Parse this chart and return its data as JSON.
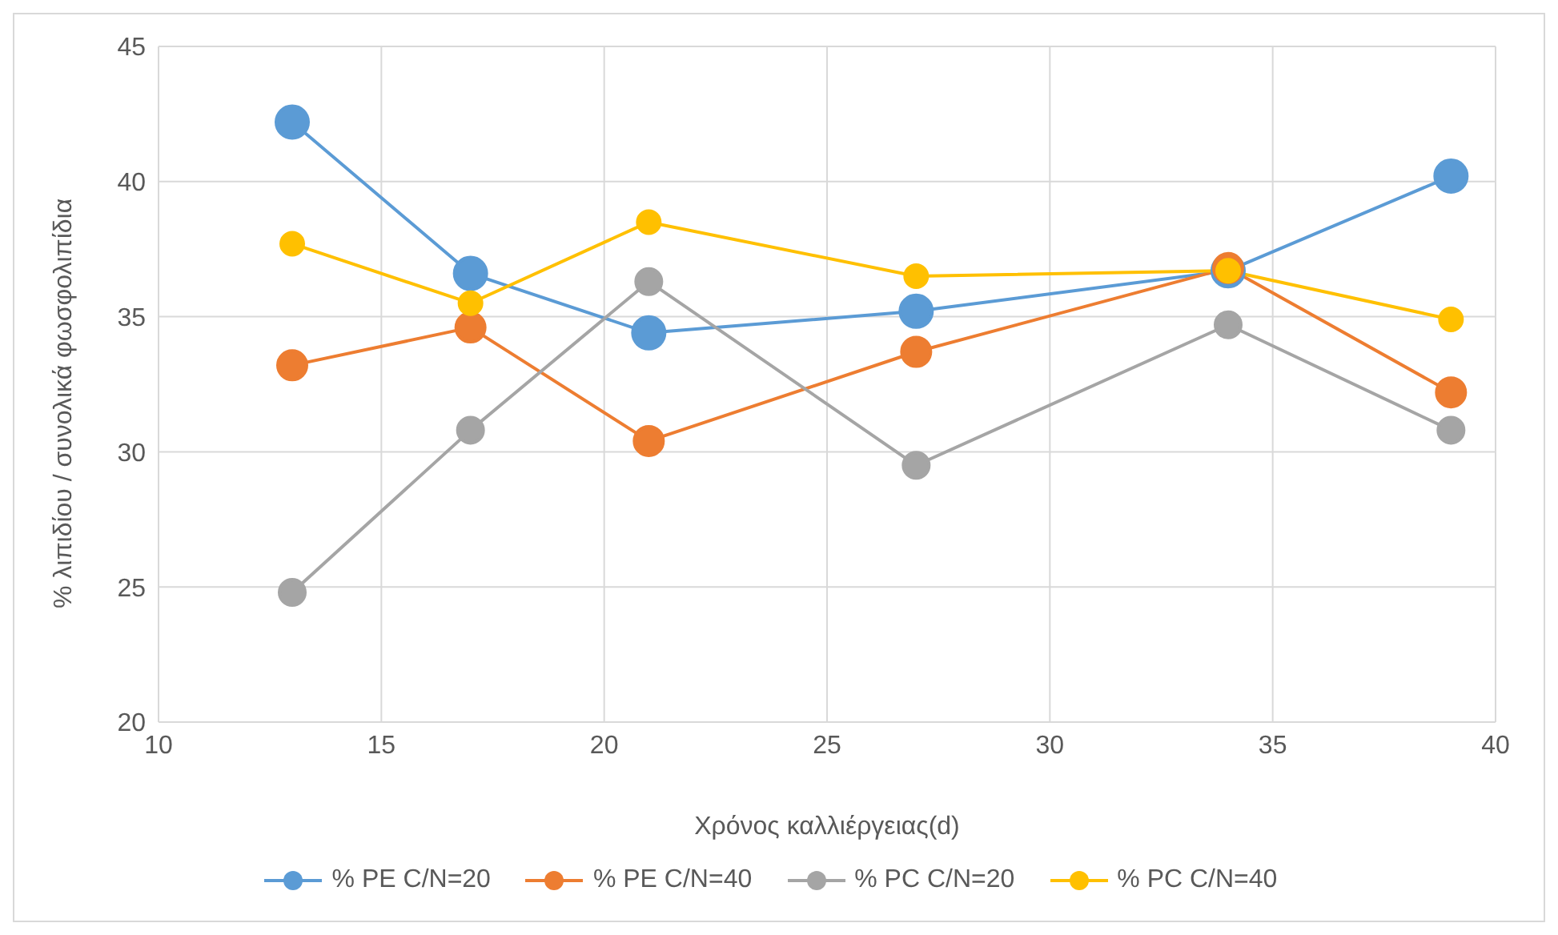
{
  "chart_data": {
    "type": "line",
    "xlabel": "Χρόνος καλλιέργειας(d)",
    "ylabel": "% λιπιδίου / συνολικά φωσφολιπίδια",
    "x": [
      13,
      17,
      21,
      27,
      34,
      39
    ],
    "series": [
      {
        "name": "% PE C/N=20",
        "color": "#5b9bd5",
        "values": [
          42.2,
          36.6,
          34.4,
          35.2,
          36.7,
          40.2
        ]
      },
      {
        "name": "% PE C/N=40",
        "color": "#ed7d31",
        "values": [
          33.2,
          34.6,
          30.4,
          33.7,
          36.8,
          32.2
        ]
      },
      {
        "name": "% PC C/N=20",
        "color": "#a5a5a5",
        "values": [
          24.8,
          30.8,
          36.3,
          29.5,
          34.7,
          30.8
        ]
      },
      {
        "name": "% PC C/N=40",
        "color": "#ffc000",
        "values": [
          37.7,
          35.5,
          38.5,
          36.5,
          36.7,
          34.9
        ]
      }
    ],
    "xlim": [
      10,
      40
    ],
    "xticks": [
      10,
      15,
      20,
      25,
      30,
      35,
      40
    ],
    "ylim": [
      20,
      45
    ],
    "yticks": [
      20,
      25,
      30,
      35,
      40,
      45
    ],
    "grid": true,
    "legend": "bottom",
    "marker": "circle",
    "line_style": "solid"
  }
}
